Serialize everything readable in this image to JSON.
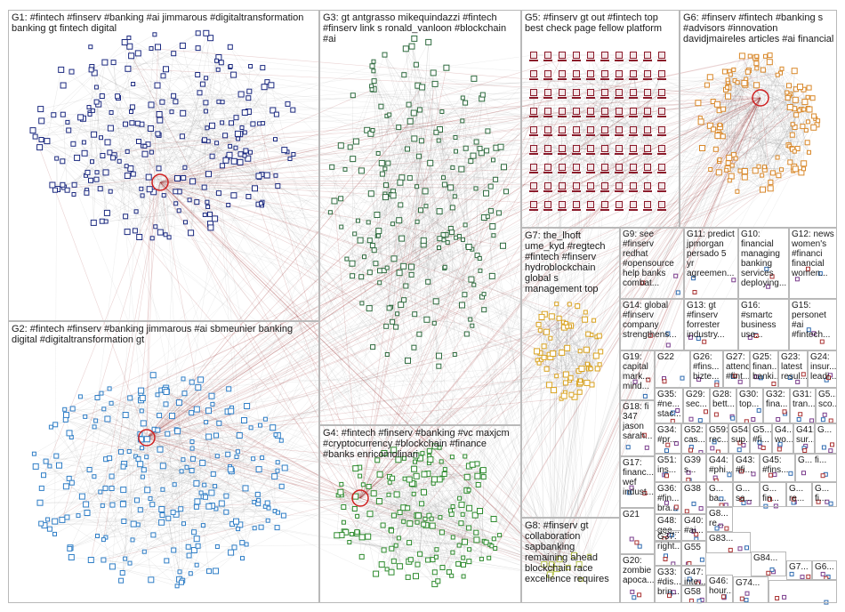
{
  "groups": [
    {
      "id": "G1",
      "label": "G1: #fintech #finserv #banking #ai jimmarous #digitaltransformation banking gt fintech digital",
      "color": "#1c2a80"
    },
    {
      "id": "G2",
      "label": "G2: #fintech #finserv #banking jimmarous #ai sbmeunier banking digital #digitaltransformation gt",
      "color": "#2f7ec6"
    },
    {
      "id": "G3",
      "label": "G3: gt antgrasso mikequindazzi #fintech #finserv link s ronald_vanloon #blockchain #ai",
      "color": "#2f6b3f"
    },
    {
      "id": "G4",
      "label": "G4: #fintech #finserv #banking #vc maxjcm #cryptocurrency #blockchain #finance #banks enricomolinari",
      "color": "#2e8b2e"
    },
    {
      "id": "G5",
      "label": "G5: #finserv gt out #fintech top best check page fellow platform",
      "color": "#8b1a2a"
    },
    {
      "id": "G6",
      "label": "G6: #finserv #fintech #banking s #advisors #innovation davidjmaireles articles #ai financial",
      "color": "#d9882a"
    },
    {
      "id": "G7",
      "label": "G7: the_lhoft ume_kyd #regtech #fintech #finserv hydroblockchain global s management top",
      "color": "#d9a21e"
    },
    {
      "id": "G8",
      "label": "G8: #finserv gt collaboration sapbanking remaining ahead blockchain race excellence requires",
      "color": "#b5c24a"
    },
    {
      "id": "G9",
      "label": "G9: see #finserv redhat #opensource help banks combat...",
      "color": "#777777"
    },
    {
      "id": "G10",
      "label": "G10: financial managing banking services deploying...",
      "color": "#777777"
    },
    {
      "id": "G11",
      "label": "G11: predict jpmorgan persado 5 yr agreemen...",
      "color": "#777777"
    },
    {
      "id": "G12",
      "label": "G12: news women's #financi financial women...",
      "color": "#777777"
    },
    {
      "id": "G13",
      "label": "G13: gt #finserv forrester industry...",
      "color": "#777777"
    },
    {
      "id": "G14",
      "label": "G14: global #finserv company strengthens...",
      "color": "#777777"
    },
    {
      "id": "G15",
      "label": "G15: personet #ai #fintech...",
      "color": "#777777"
    },
    {
      "id": "G16",
      "label": "G16: #smartc business use...",
      "color": "#777777"
    },
    {
      "id": "G17",
      "label": "G17: financ... wef indust...",
      "color": "#777777"
    },
    {
      "id": "G18",
      "label": "G18: fi 347 jason sarah...",
      "color": "#777777"
    },
    {
      "id": "G19",
      "label": "G19: capital mark... mind...",
      "color": "#777777"
    },
    {
      "id": "G20",
      "label": "G20: zombie apoca...",
      "color": "#777777"
    },
    {
      "id": "G21",
      "label": "G21",
      "color": "#777777"
    },
    {
      "id": "G22",
      "label": "G22",
      "color": "#777777"
    },
    {
      "id": "G23",
      "label": "G23: latest resul...",
      "color": "#777777"
    },
    {
      "id": "G24",
      "label": "G24: insur... leadi...",
      "color": "#777777"
    },
    {
      "id": "G25",
      "label": "G25: finan... banki...",
      "color": "#777777"
    },
    {
      "id": "G26",
      "label": "G26: #fins... bizte...",
      "color": "#777777"
    },
    {
      "id": "G27",
      "label": "G27: attend #fint...",
      "color": "#777777"
    },
    {
      "id": "G28",
      "label": "G28: bett...",
      "color": "#777777"
    },
    {
      "id": "G29",
      "label": "G29: sec...",
      "color": "#777777"
    },
    {
      "id": "G30",
      "label": "G30: top...",
      "color": "#777777"
    },
    {
      "id": "G31",
      "label": "G31: tran...",
      "color": "#777777"
    },
    {
      "id": "G32",
      "label": "G32: fina...",
      "color": "#777777"
    },
    {
      "id": "G33",
      "label": "G33: #dis... brin...",
      "color": "#777777"
    },
    {
      "id": "G34",
      "label": "G34: #pr...",
      "color": "#777777"
    },
    {
      "id": "G35",
      "label": "G35: #ne... stac...",
      "color": "#777777"
    },
    {
      "id": "G36",
      "label": "G36: #fin... bra...",
      "color": "#777777"
    },
    {
      "id": "G37",
      "label": "G37: right...",
      "color": "#777777"
    },
    {
      "id": "G38",
      "label": "G38",
      "color": "#777777"
    },
    {
      "id": "G39",
      "label": "G39 s...",
      "color": "#777777"
    },
    {
      "id": "G40",
      "label": "G40: #ai...",
      "color": "#777777"
    },
    {
      "id": "G41",
      "label": "G41: sur...",
      "color": "#777777"
    },
    {
      "id": "G43",
      "label": "G43: #fi...",
      "color": "#777777"
    },
    {
      "id": "G44",
      "label": "G44: #phi...",
      "color": "#777777"
    },
    {
      "id": "G45",
      "label": "G45: #fins...",
      "color": "#777777"
    },
    {
      "id": "G46",
      "label": "G46: hour...",
      "color": "#777777"
    },
    {
      "id": "G47",
      "label": "G47: inte...",
      "color": "#777777"
    },
    {
      "id": "G48",
      "label": "G48: gee...",
      "color": "#777777"
    },
    {
      "id": "G50",
      "label": "G50: whi...",
      "color": "#777777"
    },
    {
      "id": "G51",
      "label": "G51: ins...",
      "color": "#777777"
    },
    {
      "id": "G52",
      "label": "G52: cas...",
      "color": "#777777"
    },
    {
      "id": "G54",
      "label": "G54: sup...",
      "color": "#777777"
    },
    {
      "id": "G55",
      "label": "G55",
      "color": "#777777"
    },
    {
      "id": "G58",
      "label": "G58",
      "color": "#777777"
    },
    {
      "id": "G59",
      "label": "G59: rec...",
      "color": "#777777"
    },
    {
      "id": "G5a",
      "label": "G5... sco...",
      "color": "#777777"
    },
    {
      "id": "G5b",
      "label": "G5: G5...",
      "color": "#777777"
    },
    {
      "id": "G6a",
      "label": "G6...",
      "color": "#777777"
    },
    {
      "id": "G7a",
      "label": "G7...",
      "color": "#777777"
    },
    {
      "id": "G74",
      "label": "G74...",
      "color": "#777777"
    },
    {
      "id": "G8a",
      "label": "G8... re...",
      "color": "#777777"
    },
    {
      "id": "G83",
      "label": "G83...",
      "color": "#777777"
    },
    {
      "id": "G84",
      "label": "G84...",
      "color": "#777777"
    },
    {
      "id": "Ga",
      "label": "G... ba...",
      "color": "#777777"
    },
    {
      "id": "Gb",
      "label": "G... sa...",
      "color": "#777777"
    },
    {
      "id": "Gc",
      "label": "G... fin...",
      "color": "#777777"
    },
    {
      "id": "Gd",
      "label": "G4... wo...",
      "color": "#777777"
    },
    {
      "id": "Ge",
      "label": "G5... #fi...",
      "color": "#777777"
    },
    {
      "id": "Gf",
      "label": "G... re...",
      "color": "#777777"
    },
    {
      "id": "Gg",
      "label": "G... fi...",
      "color": "#777777"
    },
    {
      "id": "Gh",
      "label": "G...",
      "color": "#777777"
    }
  ],
  "colors": {
    "panel_border": "#b9b9b9",
    "edge": "#7a7a7a",
    "hub_edge": "#a03030",
    "hub_circle": "#d02020",
    "background": "#ffffff"
  }
}
